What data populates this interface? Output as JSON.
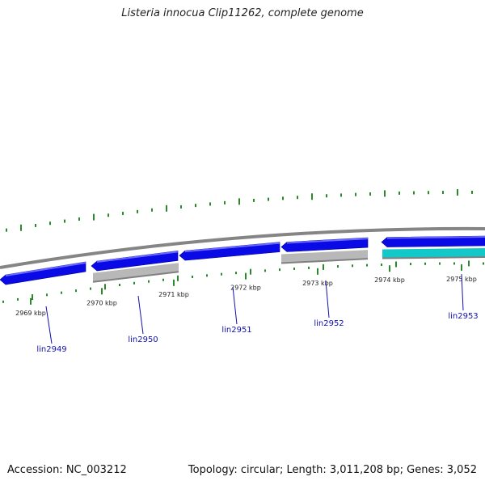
{
  "title": "Listeria innocua Clip11262, complete genome",
  "footer": {
    "accession": "Accession: NC_003212",
    "summary": "Topology: circular; Length: 3,011,208 bp; Genes: 3,052"
  },
  "colors": {
    "backbone": "#858585",
    "gene_forward": "#0a0ae6",
    "gene_reverse": "#b8b8b8",
    "gene_other": "#12c8c8",
    "tick": "#2a8a2a",
    "gene_label": "#1010b0"
  },
  "ticks": [
    {
      "label": "2969 kbp"
    },
    {
      "label": "2970 kbp"
    },
    {
      "label": "2971 kbp"
    },
    {
      "label": "2972 kbp"
    },
    {
      "label": "2973 kbp"
    },
    {
      "label": "2974 kbp"
    },
    {
      "label": "2975 kbp"
    }
  ],
  "genes": [
    {
      "name": "lin2949",
      "kind": "forward"
    },
    {
      "name": "lin2950",
      "kind": "forward"
    },
    {
      "name": "lin2951",
      "kind": "forward"
    },
    {
      "name": "lin2952",
      "kind": "forward"
    },
    {
      "name": "lin2953",
      "kind": "forward"
    }
  ]
}
